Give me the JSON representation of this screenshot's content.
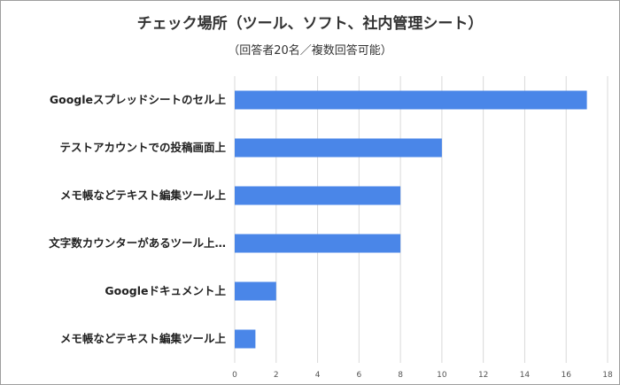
{
  "chart_data": {
    "type": "bar",
    "orientation": "horizontal",
    "title": "チェック場所（ツール、ソフト、社内管理シート）",
    "subtitle": "（回答者20名／複数回答可能）",
    "categories": [
      "Googleスプレッドシートのセル上",
      "テストアカウントでの投稿画面上",
      "メモ帳などテキスト編集ツール上",
      "文字数カウンターがあるツール上…",
      "Googleドキュメント上",
      "メモ帳などテキスト編集ツール上"
    ],
    "values": [
      17,
      10,
      8,
      8,
      2,
      1
    ],
    "xlim": [
      0,
      18
    ],
    "x_ticks": [
      0,
      2,
      4,
      6,
      8,
      10,
      12,
      14,
      16,
      18
    ],
    "grid": true,
    "bar_color": "#4a86e8"
  }
}
